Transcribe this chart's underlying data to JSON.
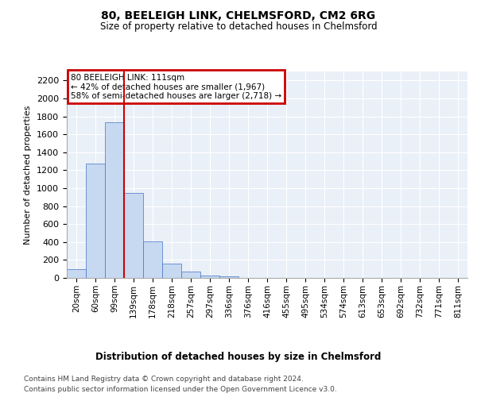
{
  "title": "80, BEELEIGH LINK, CHELMSFORD, CM2 6RG",
  "subtitle": "Size of property relative to detached houses in Chelmsford",
  "xlabel": "Distribution of detached houses by size in Chelmsford",
  "ylabel": "Number of detached properties",
  "categories": [
    "20sqm",
    "60sqm",
    "99sqm",
    "139sqm",
    "178sqm",
    "218sqm",
    "257sqm",
    "297sqm",
    "336sqm",
    "376sqm",
    "416sqm",
    "455sqm",
    "495sqm",
    "534sqm",
    "574sqm",
    "613sqm",
    "653sqm",
    "692sqm",
    "732sqm",
    "771sqm",
    "811sqm"
  ],
  "values": [
    100,
    1270,
    1730,
    950,
    410,
    155,
    75,
    30,
    20,
    0,
    0,
    0,
    0,
    0,
    0,
    0,
    0,
    0,
    0,
    0,
    0
  ],
  "ylim": [
    0,
    2300
  ],
  "yticks": [
    0,
    200,
    400,
    600,
    800,
    1000,
    1200,
    1400,
    1600,
    1800,
    2000,
    2200
  ],
  "bar_color": "#c6d9f1",
  "bar_edge_color": "#4472c4",
  "vline_x_index": 2,
  "vline_color": "#cc0000",
  "annotation_text": "80 BEELEIGH LINK: 111sqm\n← 42% of detached houses are smaller (1,967)\n58% of semi-detached houses are larger (2,718) →",
  "annotation_box_color": "#cc0000",
  "footer_line1": "Contains HM Land Registry data © Crown copyright and database right 2024.",
  "footer_line2": "Contains public sector information licensed under the Open Government Licence v3.0.",
  "background_color": "#ffffff",
  "plot_bg_color": "#eaf0f8",
  "grid_color": "#ffffff"
}
